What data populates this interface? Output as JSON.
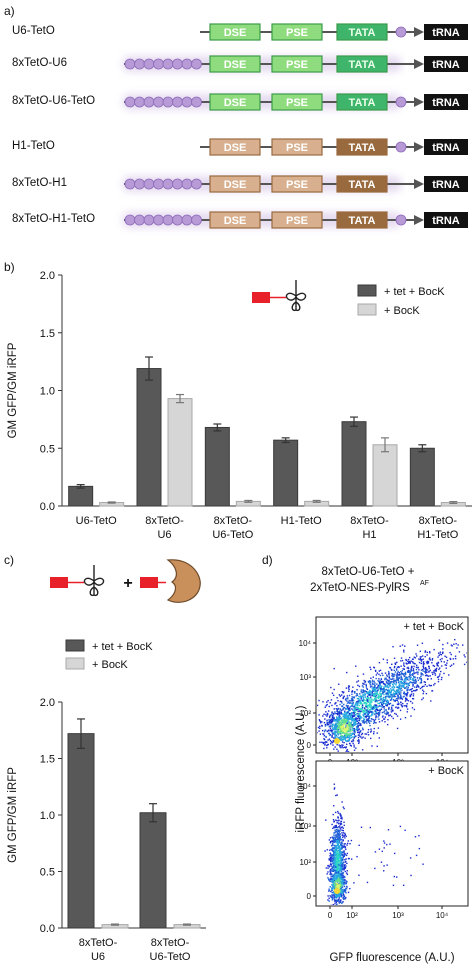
{
  "panels": {
    "a": "a)",
    "b": "b)",
    "c": "c)",
    "d": "d)"
  },
  "colors": {
    "tetO": "#b79ad6",
    "u6_element_fill": "#8fdc7e",
    "u6_tata_fill": "#3fb56b",
    "h1_element_fill": "#d8b08f",
    "h1_tata_fill": "#9a6a3f",
    "trna_fill": "#111111",
    "bar_dark": "#585858",
    "bar_light": "#d6d6d6",
    "reporter_red": "#e8202a",
    "enzyme_fill": "#c9905c"
  },
  "constructs": {
    "group1": [
      {
        "label": "U6-TetO"
      },
      {
        "label": "8xTetO-U6"
      },
      {
        "label": "8xTetO-U6-TetO"
      }
    ],
    "group2": [
      {
        "label": "H1-TetO"
      },
      {
        "label": "8xTetO-H1"
      },
      {
        "label": "8xTetO-H1-TetO"
      }
    ],
    "elements": {
      "dse": "DSE",
      "pse": "PSE",
      "tata": "TATA",
      "trna": "tRNA"
    }
  },
  "legend_b": {
    "series1": "+ tet + BocK",
    "series2": "+ BocK"
  },
  "legend_c": {
    "series1": "+ tet + BocK",
    "series2": "+ BocK",
    "plus": "+"
  },
  "chart_data": [
    {
      "type": "bar",
      "panel": "b",
      "ylabel": "GM GFP/GM iRFP",
      "ylim": [
        0,
        2.0
      ],
      "yticks": [
        0.0,
        0.5,
        1.0,
        1.5,
        2.0
      ],
      "ytick_labels": [
        "0.0",
        "0.5",
        "1.0",
        "1.5",
        "2.0"
      ],
      "categories": [
        "U6-TetO",
        "8xTetO-U6",
        "8xTetO-U6-TetO",
        "H1-TetO",
        "8xTetO-H1",
        "8xTetO-H1-TetO"
      ],
      "category_lines": [
        [
          "U6-TetO"
        ],
        [
          "8xTetO-",
          "U6"
        ],
        [
          "8xTetO-",
          "U6-TetO"
        ],
        [
          "H1-TetO"
        ],
        [
          "8xTetO-",
          "H1"
        ],
        [
          "8xTetO-",
          "H1-TetO"
        ]
      ],
      "series": [
        {
          "name": "+ tet + BocK",
          "values": [
            0.17,
            1.19,
            0.68,
            0.57,
            0.73,
            0.5
          ],
          "errors": [
            0.015,
            0.1,
            0.03,
            0.02,
            0.04,
            0.03
          ]
        },
        {
          "name": "+ BocK",
          "values": [
            0.03,
            0.93,
            0.04,
            0.04,
            0.53,
            0.03
          ],
          "errors": [
            0.005,
            0.035,
            0.008,
            0.008,
            0.06,
            0.008
          ]
        }
      ],
      "legend": "top-right"
    },
    {
      "type": "bar",
      "panel": "c",
      "ylabel": "GM GFP/GM iRFP",
      "ylim": [
        0,
        2.0
      ],
      "yticks": [
        0.0,
        0.5,
        1.0,
        1.5,
        2.0
      ],
      "ytick_labels": [
        "0.0",
        "0.5",
        "1.0",
        "1.5",
        "2.0"
      ],
      "categories": [
        "8xTetO-U6",
        "8xTetO-U6-TetO"
      ],
      "category_lines": [
        [
          "8xTetO-",
          "U6"
        ],
        [
          "8xTetO-",
          "U6-TetO"
        ]
      ],
      "series": [
        {
          "name": "+ tet + BocK",
          "values": [
            1.72,
            1.02
          ],
          "errors": [
            0.13,
            0.08
          ]
        },
        {
          "name": "+ BocK",
          "values": [
            0.03,
            0.03
          ],
          "errors": [
            0.005,
            0.005
          ]
        }
      ],
      "legend": "top-left"
    },
    {
      "type": "scatter",
      "panel": "d",
      "title_line1": "8xTetO-U6-TetO +",
      "title_line2": "2xTetO-NES-PylRS",
      "title_sup": "AF",
      "xlabel": "GFP fluorescence (A.U.)",
      "ylabel": "iRFP fluorescence (A.U.)",
      "xtick_labels": [
        "0",
        "10²",
        "10³",
        "10⁴"
      ],
      "ytick_labels": [
        "0",
        "10²",
        "10³",
        "10⁴"
      ],
      "subplots": [
        {
          "label": "+ tet + BocK"
        },
        {
          "label": "+ BocK"
        }
      ]
    }
  ]
}
